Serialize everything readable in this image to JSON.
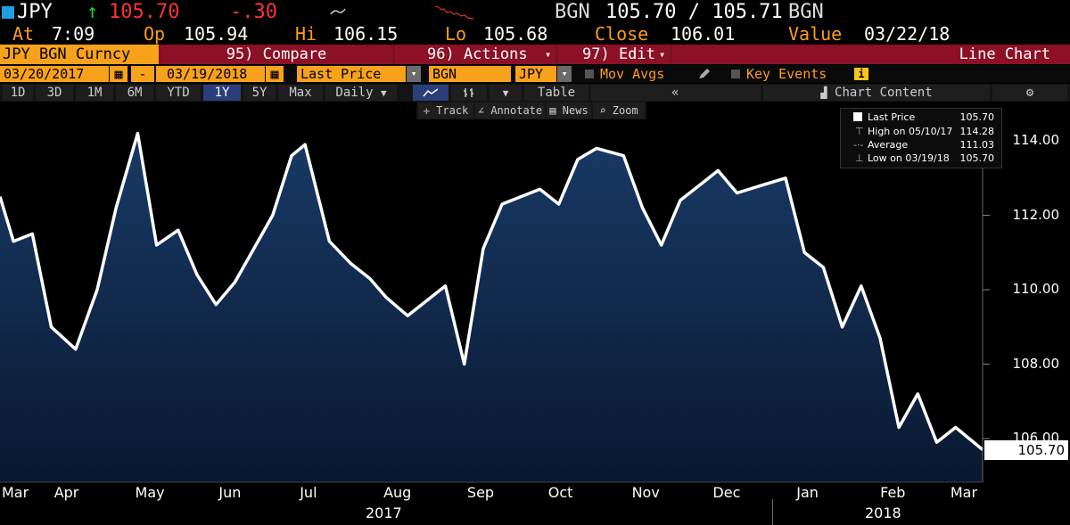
{
  "header": {
    "ticker": "JPY",
    "arrow": "↑",
    "last": "105.70",
    "change": "-.30",
    "source_label": "BGN",
    "bid_ask": "105.70 / 105.71",
    "source_label2": "BGN",
    "at_label": "At",
    "at_value": "7:09",
    "op_label": "Op",
    "op_value": "105.94",
    "hi_label": "Hi",
    "hi_value": "106.15",
    "lo_label": "Lo",
    "lo_value": "105.68",
    "close_label": "Close",
    "close_value": "106.01",
    "value_label": "Value",
    "value_date": "03/22/18"
  },
  "menubar": {
    "security": "JPY BGN Curncy",
    "compare": "95) Compare",
    "actions": "96) Actions",
    "edit": "97) Edit",
    "chart_type": "Line Chart"
  },
  "controls": {
    "start_date": "03/20/2017",
    "dash": "-",
    "end_date": "03/19/2018",
    "field": "Last Price",
    "source": "BGN",
    "currency": "JPY",
    "mov_avgs": "Mov Avgs",
    "key_events": "Key Events",
    "info": "i"
  },
  "periods": [
    "1D",
    "3D",
    "1M",
    "6M",
    "YTD",
    "1Y",
    "5Y",
    "Max"
  ],
  "selected_period": "1Y",
  "frequency": "Daily",
  "table_label": "Table",
  "chart_content": "Chart Content",
  "tools": {
    "track": "Track",
    "annotate": "Annotate",
    "news": "News",
    "zoom": "Zoom"
  },
  "legend": {
    "last_label": "Last Price",
    "last_value": "105.70",
    "high_label": "High on 05/10/17",
    "high_value": "114.28",
    "avg_label": "Average",
    "avg_value": "111.03",
    "low_label": "Low on 03/19/18",
    "low_value": "105.70"
  },
  "colors": {
    "line": "#ffffff",
    "fill_top": "#183a66",
    "fill_bottom": "#0a1830",
    "accent_orange": "#f7a21a",
    "bar_red": "#7a1021"
  },
  "chart_data": {
    "type": "area",
    "ylim": [
      104.9,
      115.0
    ],
    "y_ticks": [
      "114.00",
      "112.00",
      "110.00",
      "108.00",
      "106.00"
    ],
    "last_value_tag": "105.70",
    "x_months": [
      "Mar",
      "Apr",
      "May",
      "Jun",
      "Jul",
      "Aug",
      "Sep",
      "Oct",
      "Nov",
      "Dec",
      "Jan",
      "Feb",
      "Mar"
    ],
    "x_years": [
      "2017",
      "2018"
    ],
    "x": [
      "2017-03-20",
      "2017-03-25",
      "2017-04-01",
      "2017-04-08",
      "2017-04-17",
      "2017-04-25",
      "2017-05-02",
      "2017-05-10",
      "2017-05-17",
      "2017-05-25",
      "2017-06-01",
      "2017-06-08",
      "2017-06-15",
      "2017-06-22",
      "2017-06-29",
      "2017-07-06",
      "2017-07-11",
      "2017-07-20",
      "2017-07-28",
      "2017-08-04",
      "2017-08-10",
      "2017-08-18",
      "2017-08-25",
      "2017-09-01",
      "2017-09-08",
      "2017-09-15",
      "2017-09-22",
      "2017-09-29",
      "2017-10-06",
      "2017-10-13",
      "2017-10-20",
      "2017-10-27",
      "2017-11-06",
      "2017-11-13",
      "2017-11-20",
      "2017-11-27",
      "2017-12-04",
      "2017-12-11",
      "2017-12-18",
      "2017-12-27",
      "2018-01-05",
      "2018-01-12",
      "2018-01-19",
      "2018-01-26",
      "2018-02-02",
      "2018-02-09",
      "2018-02-16",
      "2018-02-23",
      "2018-03-02",
      "2018-03-09",
      "2018-03-19"
    ],
    "values": [
      112.5,
      111.3,
      111.5,
      109.0,
      108.4,
      110.0,
      112.2,
      114.2,
      111.2,
      111.6,
      110.4,
      109.6,
      110.2,
      111.1,
      112.0,
      113.6,
      113.9,
      111.3,
      110.7,
      110.3,
      109.8,
      109.3,
      109.7,
      110.1,
      108.0,
      111.1,
      112.3,
      112.5,
      112.7,
      112.3,
      113.5,
      113.8,
      113.6,
      112.2,
      111.2,
      112.4,
      112.8,
      113.2,
      112.6,
      112.8,
      113.0,
      111.0,
      110.6,
      109.0,
      110.1,
      108.7,
      106.3,
      107.2,
      105.9,
      106.3,
      105.7
    ]
  }
}
